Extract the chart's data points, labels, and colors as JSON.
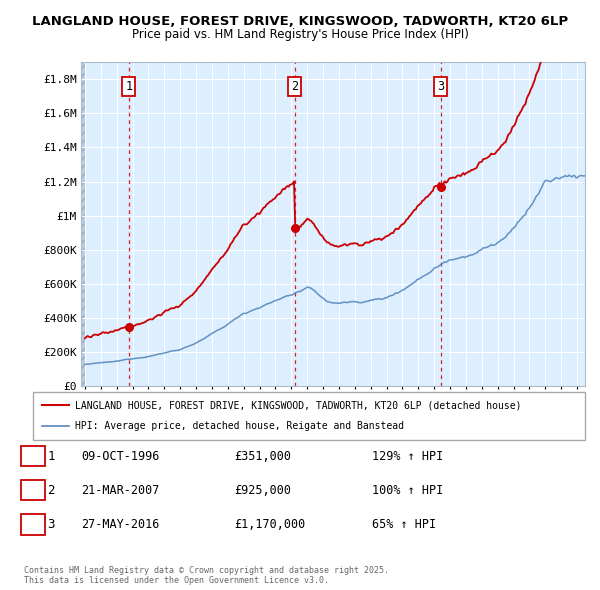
{
  "title": "LANGLAND HOUSE, FOREST DRIVE, KINGSWOOD, TADWORTH, KT20 6LP",
  "subtitle": "Price paid vs. HM Land Registry's House Price Index (HPI)",
  "ylim": [
    0,
    1900000
  ],
  "yticks": [
    0,
    200000,
    400000,
    600000,
    800000,
    1000000,
    1200000,
    1400000,
    1600000,
    1800000
  ],
  "ytick_labels": [
    "£0",
    "£200K",
    "£400K",
    "£600K",
    "£800K",
    "£1M",
    "£1.2M",
    "£1.4M",
    "£1.6M",
    "£1.8M"
  ],
  "hpi_color": "#5588bb",
  "price_color": "#cc0000",
  "grid_color": "#ccddee",
  "bg_color": "#ddeeff",
  "sale_points": [
    {
      "date_num": 1996.77,
      "price": 351000,
      "label": "1"
    },
    {
      "date_num": 2007.22,
      "price": 925000,
      "label": "2"
    },
    {
      "date_num": 2016.4,
      "price": 1170000,
      "label": "3"
    }
  ],
  "legend_entries": [
    "LANGLAND HOUSE, FOREST DRIVE, KINGSWOOD, TADWORTH, KT20 6LP (detached house)",
    "HPI: Average price, detached house, Reigate and Banstead"
  ],
  "table_rows": [
    {
      "num": "1",
      "date": "09-OCT-1996",
      "price": "£351,000",
      "hpi": "129% ↑ HPI"
    },
    {
      "num": "2",
      "date": "21-MAR-2007",
      "price": "£925,000",
      "hpi": "100% ↑ HPI"
    },
    {
      "num": "3",
      "date": "27-MAY-2016",
      "price": "£1,170,000",
      "hpi": "65% ↑ HPI"
    }
  ],
  "footnote": "Contains HM Land Registry data © Crown copyright and database right 2025.\nThis data is licensed under the Open Government Licence v3.0.",
  "xmin": 1993.75,
  "xmax": 2025.5
}
